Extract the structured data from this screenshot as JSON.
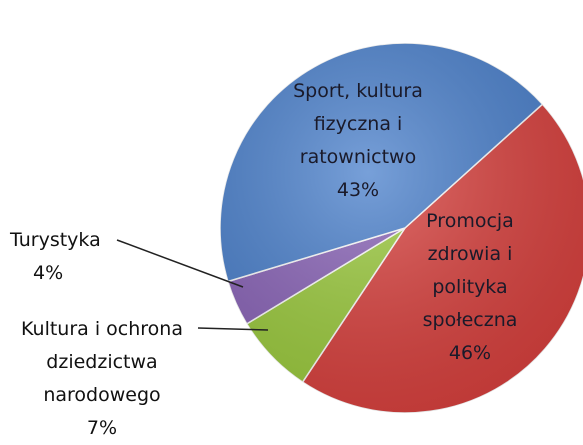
{
  "chart_data": {
    "type": "pie",
    "categories": [
      "Promocja zdrowia i polityka społeczna",
      "Kultura i ochrona dziedzictwa narodowego",
      "Turystyka",
      "Sport, kultura fizyczna i ratownictwo"
    ],
    "values": [
      46,
      7,
      4,
      43
    ],
    "value_labels": [
      "46%",
      "7%",
      "4%",
      "43%"
    ],
    "colors": [
      "#d9413e",
      "#9ccb3e",
      "#8a64b8",
      "#4a80cc"
    ]
  }
}
